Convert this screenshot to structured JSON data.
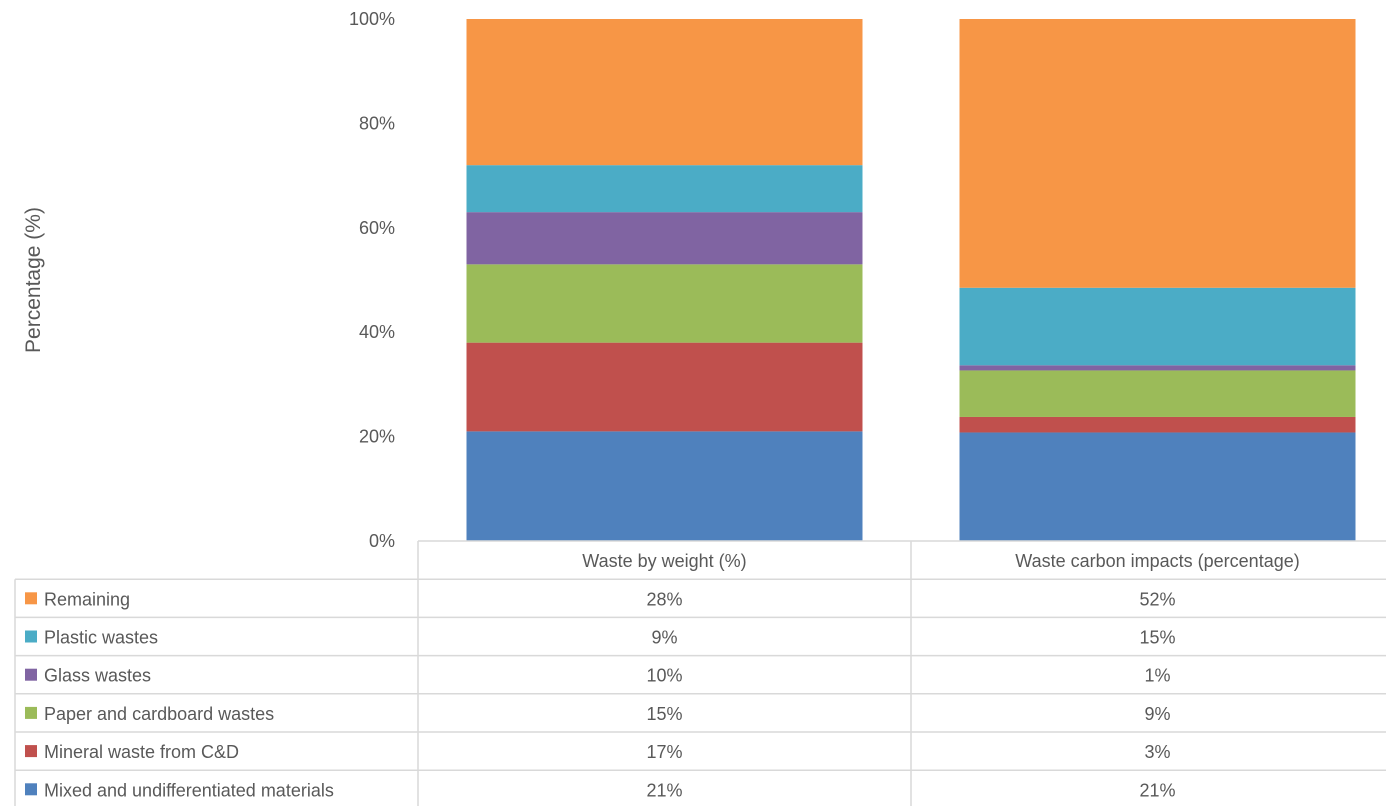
{
  "chart_data": {
    "type": "bar",
    "stacked": true,
    "ylabel": "Percentage (%)",
    "ylim": [
      0,
      100
    ],
    "yticks": [
      "0%",
      "20%",
      "40%",
      "60%",
      "80%",
      "100%"
    ],
    "categories": [
      "Waste by weight (%)",
      "Waste carbon impacts (percentage)"
    ],
    "series": [
      {
        "name": "Mixed and undifferentiated materials",
        "color": "#4f81bd",
        "values": [
          21,
          21
        ],
        "labels": [
          "21%",
          "21%"
        ]
      },
      {
        "name": "Mineral waste from C&D",
        "color": "#c0504d",
        "values": [
          17,
          3
        ],
        "labels": [
          "17%",
          "3%"
        ]
      },
      {
        "name": "Paper and cardboard wastes",
        "color": "#9bbb59",
        "values": [
          15,
          9
        ],
        "labels": [
          "15%",
          "9%"
        ]
      },
      {
        "name": "Glass wastes",
        "color": "#8064a2",
        "values": [
          10,
          1
        ],
        "labels": [
          "10%",
          "1%"
        ]
      },
      {
        "name": "Plastic wastes",
        "color": "#4bacc6",
        "values": [
          9,
          15
        ],
        "labels": [
          "9%",
          "15%"
        ]
      },
      {
        "name": "Remaining",
        "color": "#f79646",
        "values": [
          28,
          52
        ],
        "labels": [
          "28%",
          "52%"
        ]
      }
    ],
    "legend": "data-table"
  }
}
